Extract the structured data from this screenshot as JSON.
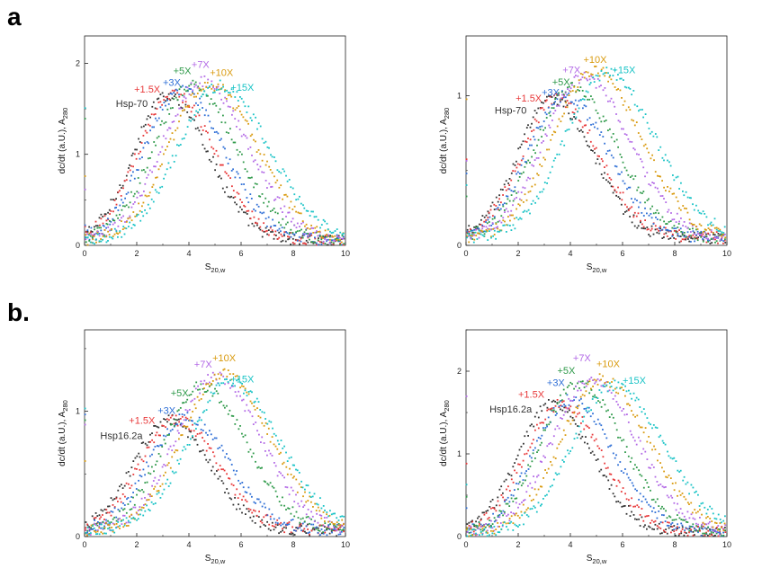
{
  "panel_labels": [
    "a",
    "b."
  ],
  "colors": {
    "+1.5X": "#e8393a",
    "+3X": "#2f6fd6",
    "+5X": "#2f9a4a",
    "+7X": "#b36ae6",
    "+10X": "#d99b10",
    "+15X": "#19c3c6",
    "base": "#333333"
  },
  "chart_data": [
    {
      "type": "scatter",
      "xlabel_main": "S",
      "xlabel_sub": "20,w",
      "ylabel_main": "dc/dt (a.U.), A",
      "ylabel_sub": "280",
      "xlim": [
        0,
        10
      ],
      "ylim": [
        0,
        2.3
      ],
      "xticks": [
        "0",
        "2",
        "4",
        "6",
        "8",
        "10"
      ],
      "yticks": [
        "0",
        "1",
        "2"
      ],
      "series": [
        {
          "name": "Hsp-70",
          "peak": 3.2,
          "height": 1.6,
          "label_pos": [
            1.2,
            1.52
          ]
        },
        {
          "name": "+1.5X",
          "peak": 3.4,
          "height": 1.62,
          "label_pos": [
            1.9,
            1.68
          ]
        },
        {
          "name": "+3X",
          "peak": 3.7,
          "height": 1.65,
          "label_pos": [
            3.0,
            1.75
          ]
        },
        {
          "name": "+5X",
          "peak": 4.1,
          "height": 1.7,
          "label_pos": [
            3.4,
            1.88
          ]
        },
        {
          "name": "+7X",
          "peak": 4.5,
          "height": 1.75,
          "label_pos": [
            4.1,
            1.95
          ]
        },
        {
          "name": "+10X",
          "peak": 4.8,
          "height": 1.72,
          "label_pos": [
            4.8,
            1.86
          ]
        },
        {
          "name": "+15X",
          "peak": 5.2,
          "height": 1.7,
          "label_pos": [
            5.6,
            1.7
          ]
        }
      ]
    },
    {
      "type": "scatter",
      "xlabel_main": "S",
      "xlabel_sub": "20,w",
      "ylabel_main": "dc/dt (a.U.), A",
      "ylabel_sub": "280",
      "xlim": [
        0,
        10
      ],
      "ylim": [
        0,
        1.4
      ],
      "xticks": [
        "0",
        "2",
        "4",
        "6",
        "8",
        "10"
      ],
      "yticks": [
        "0",
        "1"
      ],
      "series": [
        {
          "name": "Hsp-70",
          "peak": 3.3,
          "height": 0.93,
          "label_pos": [
            1.1,
            0.88
          ]
        },
        {
          "name": "+1.5X",
          "peak": 3.5,
          "height": 0.93,
          "label_pos": [
            1.9,
            0.96
          ]
        },
        {
          "name": "+3X",
          "peak": 3.8,
          "height": 0.95,
          "label_pos": [
            2.9,
            1.0
          ]
        },
        {
          "name": "+5X",
          "peak": 4.1,
          "height": 1.0,
          "label_pos": [
            3.3,
            1.07
          ]
        },
        {
          "name": "+7X",
          "peak": 4.5,
          "height": 1.08,
          "label_pos": [
            3.7,
            1.15
          ]
        },
        {
          "name": "+10X",
          "peak": 4.9,
          "height": 1.12,
          "label_pos": [
            4.5,
            1.22
          ]
        },
        {
          "name": "+15X",
          "peak": 5.4,
          "height": 1.1,
          "label_pos": [
            5.6,
            1.15
          ]
        }
      ]
    },
    {
      "type": "scatter",
      "xlabel_main": "S",
      "xlabel_sub": "20,w",
      "ylabel_main": "dc/dt (a.U.), A",
      "ylabel_sub": "280",
      "xlim": [
        0,
        10
      ],
      "ylim": [
        0,
        1.65
      ],
      "xticks": [
        "0",
        "2",
        "4",
        "6",
        "8",
        "10"
      ],
      "yticks": [
        "0",
        "1"
      ],
      "series": [
        {
          "name": "Hsp16.2a",
          "peak": 3.2,
          "height": 0.88,
          "label_pos": [
            0.6,
            0.78
          ]
        },
        {
          "name": "+1.5X",
          "peak": 3.5,
          "height": 0.88,
          "label_pos": [
            1.7,
            0.9
          ]
        },
        {
          "name": "+3X",
          "peak": 3.9,
          "height": 0.9,
          "label_pos": [
            2.8,
            0.98
          ]
        },
        {
          "name": "+5X",
          "peak": 4.5,
          "height": 1.15,
          "label_pos": [
            3.3,
            1.12
          ]
        },
        {
          "name": "+7X",
          "peak": 5.0,
          "height": 1.22,
          "label_pos": [
            4.2,
            1.35
          ]
        },
        {
          "name": "+10X",
          "peak": 5.3,
          "height": 1.25,
          "label_pos": [
            4.9,
            1.4
          ]
        },
        {
          "name": "+15X",
          "peak": 5.6,
          "height": 1.18,
          "label_pos": [
            5.6,
            1.23
          ]
        }
      ]
    },
    {
      "type": "scatter",
      "xlabel_main": "S",
      "xlabel_sub": "20,w",
      "ylabel_main": "dc/dt (a.U.), A",
      "ylabel_sub": "280",
      "xlim": [
        0,
        10
      ],
      "ylim": [
        0,
        2.5
      ],
      "xticks": [
        "0",
        "2",
        "4",
        "6",
        "8",
        "10"
      ],
      "yticks": [
        "0",
        "1",
        "2"
      ],
      "series": [
        {
          "name": "Hsp16.2a",
          "peak": 3.3,
          "height": 1.55,
          "label_pos": [
            0.9,
            1.5
          ]
        },
        {
          "name": "+1.5X",
          "peak": 3.6,
          "height": 1.55,
          "label_pos": [
            2.0,
            1.68
          ]
        },
        {
          "name": "+3X",
          "peak": 4.0,
          "height": 1.6,
          "label_pos": [
            3.1,
            1.82
          ]
        },
        {
          "name": "+5X",
          "peak": 4.3,
          "height": 1.8,
          "label_pos": [
            3.5,
            1.97
          ]
        },
        {
          "name": "+7X",
          "peak": 4.8,
          "height": 1.85,
          "label_pos": [
            4.1,
            2.12
          ]
        },
        {
          "name": "+10X",
          "peak": 5.2,
          "height": 1.85,
          "label_pos": [
            5.0,
            2.05
          ]
        },
        {
          "name": "+15X",
          "peak": 5.7,
          "height": 1.78,
          "label_pos": [
            6.0,
            1.85
          ]
        }
      ]
    }
  ]
}
